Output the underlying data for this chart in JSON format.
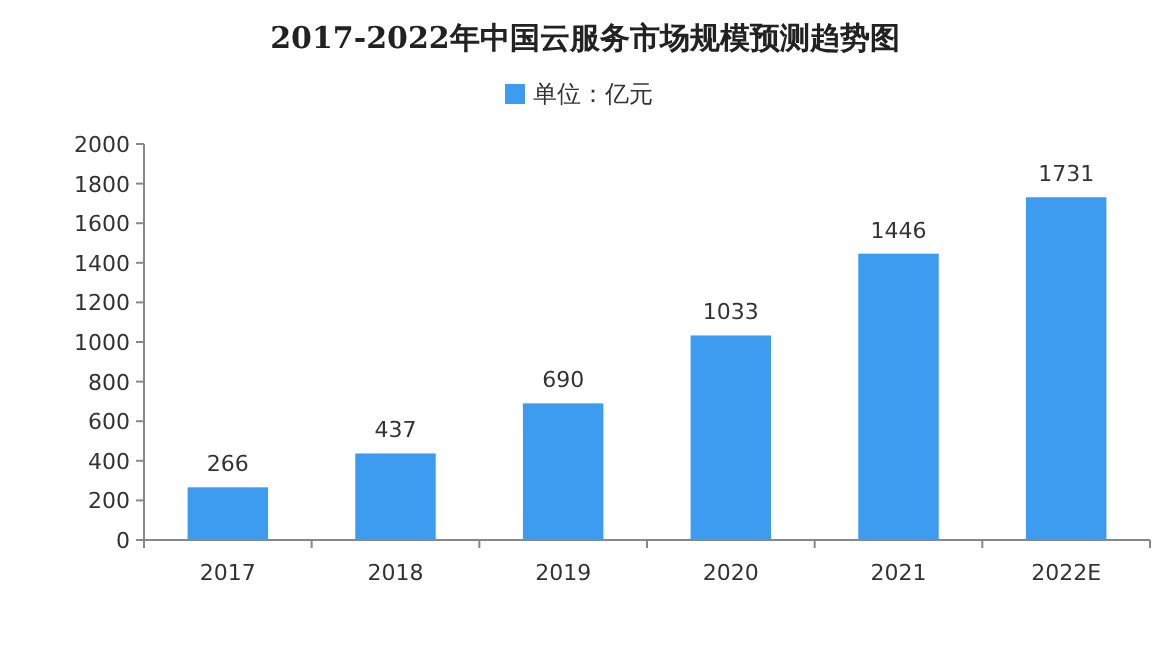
{
  "chart_data": {
    "type": "bar",
    "title": "2017-2022年中国云服务市场规模预测趋势图",
    "categories": [
      "2017",
      "2018",
      "2019",
      "2020",
      "2021",
      "2022E"
    ],
    "series": [
      {
        "name": "单位：亿元",
        "color": "#3d9bf0",
        "values": [
          266,
          437,
          690,
          1033,
          1446,
          1731
        ]
      }
    ],
    "ylim": [
      0,
      2000
    ],
    "yticks": [
      0,
      200,
      400,
      600,
      800,
      1000,
      1200,
      1400,
      1600,
      1800,
      2000
    ],
    "data_labels": true,
    "legend": "top",
    "grid": false
  }
}
